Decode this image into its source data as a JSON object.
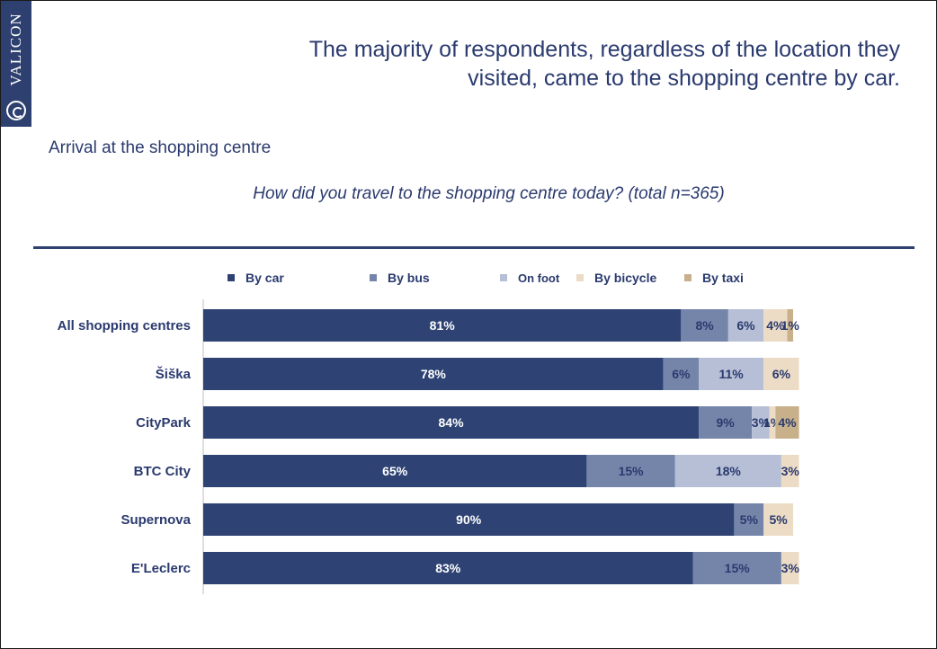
{
  "brand": {
    "name": "VALICON",
    "logo_icon": "valicon-logo-icon"
  },
  "headline": "The majority of respondents, regardless of the location they visited, came to the shopping centre by car.",
  "section_title": "Arrival at the shopping centre",
  "question": "How did you travel to the shopping centre today? (total n=365)",
  "colors": {
    "text": "#2a3a6e",
    "rule": "#2e4070"
  },
  "chart_data": {
    "type": "bar",
    "orientation": "horizontal",
    "stacked": true,
    "categories": [
      "All shopping centres",
      "Šiška",
      "CityPark",
      "BTC City",
      "Supernova",
      "E'Leclerc"
    ],
    "series": [
      {
        "name": "By car",
        "color": "#2e4374",
        "label_color": "#ffffff",
        "values": [
          81,
          78,
          84,
          65,
          90,
          83
        ],
        "labels": [
          "81%",
          "78%",
          "84%",
          "65%",
          "90%",
          "83%"
        ]
      },
      {
        "name": "By bus",
        "color": "#7585aa",
        "label_color": "#2a3a6e",
        "values": [
          8,
          6,
          9,
          15,
          5,
          15
        ],
        "labels": [
          "8%",
          "6%",
          "9%",
          "15%",
          "5%",
          "15%"
        ]
      },
      {
        "name": "On foot",
        "color": "#b6bfd6",
        "label_color": "#2a3a6e",
        "values": [
          6,
          11,
          3,
          18,
          0,
          0
        ],
        "labels": [
          "6%",
          "11%",
          "3%",
          "18%",
          "",
          ""
        ]
      },
      {
        "name": "By bicycle",
        "color": "#ecdcc6",
        "label_color": "#2a3a6e",
        "values": [
          4,
          6,
          1,
          3,
          5,
          3
        ],
        "labels": [
          "4%",
          "6%",
          "1%",
          "3%",
          "5%",
          "3%"
        ]
      },
      {
        "name": "By taxi",
        "color": "#c8b08b",
        "label_color": "#2a3a6e",
        "values": [
          1,
          0,
          4,
          0,
          0,
          0
        ],
        "labels": [
          "1%",
          "",
          "4%",
          "",
          "",
          ""
        ]
      }
    ],
    "xlim": [
      0,
      100
    ],
    "legend_position": "top",
    "grid": false
  }
}
